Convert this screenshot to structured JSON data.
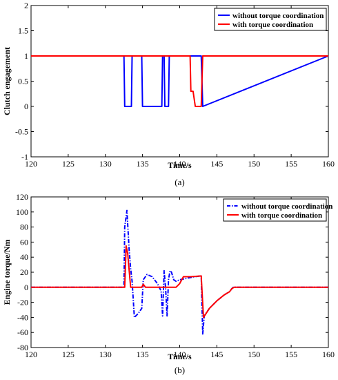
{
  "colors": {
    "series1": "#0000ff",
    "series2": "#ff0000",
    "axis": "#000000",
    "background": "#ffffff"
  },
  "chart_data": [
    {
      "type": "line",
      "panel_label": "(a)",
      "title": "",
      "xlabel": "Time/s",
      "ylabel": "Clutch engagement",
      "xlim": [
        120,
        160
      ],
      "ylim": [
        -1,
        2
      ],
      "xticks": [
        120,
        125,
        130,
        135,
        140,
        145,
        150,
        155,
        160
      ],
      "yticks": [
        -1,
        -0.5,
        0,
        0.5,
        1,
        1.5,
        2
      ],
      "ytick_labels": [
        "-1",
        "-0.5",
        "0",
        "0.5",
        "1",
        "1.5",
        "2"
      ],
      "grid": false,
      "legend_position": "top-right",
      "series": [
        {
          "name": "without torque coordination",
          "color": "#0000ff",
          "style": "solid",
          "x": [
            120,
            132.5,
            132.6,
            133.5,
            133.6,
            134.9,
            135.0,
            137.6,
            137.7,
            137.9,
            138.0,
            138.5,
            138.6,
            142.9,
            143.1,
            160
          ],
          "y": [
            1,
            1,
            0,
            0,
            1,
            1,
            0,
            0,
            1,
            1,
            0,
            0,
            1,
            1,
            0,
            1
          ]
        },
        {
          "name": "with torque coordination",
          "color": "#ff0000",
          "style": "solid",
          "x": [
            120,
            141.4,
            141.5,
            141.8,
            142.1,
            142.9,
            143.1,
            160
          ],
          "y": [
            1,
            1,
            0.3,
            0.3,
            0,
            0,
            1,
            1
          ]
        }
      ]
    },
    {
      "type": "line",
      "panel_label": "(b)",
      "title": "",
      "xlabel": "Time/s",
      "ylabel": "Engine torque/Nm",
      "xlim": [
        120,
        160
      ],
      "ylim": [
        -80,
        120
      ],
      "xticks": [
        120,
        125,
        130,
        135,
        140,
        145,
        150,
        155,
        160
      ],
      "yticks": [
        -80,
        -60,
        -40,
        -20,
        0,
        20,
        40,
        60,
        80,
        100,
        120
      ],
      "ytick_labels": [
        "-80",
        "-60",
        "-40",
        "-20",
        "0",
        "20",
        "40",
        "60",
        "80",
        "100",
        "120"
      ],
      "grid": false,
      "legend_position": "top-right",
      "series": [
        {
          "name": "without torque coordination",
          "color": "#0000ff",
          "style": "dash-dot",
          "x": [
            120,
            132.5,
            132.6,
            132.9,
            133.2,
            133.4,
            133.6,
            133.9,
            134.4,
            134.9,
            135.1,
            135.6,
            136.3,
            137.0,
            137.5,
            137.7,
            137.9,
            138.1,
            138.3,
            138.5,
            138.7,
            138.9,
            139.2,
            139.5,
            140.0,
            141.0,
            142.0,
            142.9,
            143.1,
            143.3,
            144.0,
            145.0,
            146.0,
            146.7,
            147.0,
            147.2,
            160
          ],
          "y": [
            0,
            0,
            80,
            102,
            50,
            25,
            8,
            -40,
            -35,
            -28,
            10,
            17,
            14,
            5,
            -5,
            -38,
            22,
            0,
            -38,
            10,
            22,
            20,
            10,
            8,
            10,
            12,
            14,
            15,
            -62,
            -38,
            -28,
            -18,
            -10,
            -6,
            -2,
            0,
            0
          ]
        },
        {
          "name": "with torque coordination",
          "color": "#ff0000",
          "style": "solid",
          "x": [
            120,
            132.6,
            132.8,
            133.0,
            133.4,
            133.8,
            134.4,
            134.9,
            135.1,
            135.4,
            136.0,
            138.0,
            139.0,
            139.5,
            140.0,
            140.5,
            141.5,
            142.9,
            143.2,
            144.0,
            145.0,
            146.0,
            146.7,
            147.0,
            147.3,
            160
          ],
          "y": [
            0,
            0,
            55,
            45,
            0,
            0,
            0,
            0,
            4,
            0,
            0,
            0,
            0,
            0,
            5,
            14,
            14,
            15,
            -40,
            -28,
            -18,
            -10,
            -6,
            -2,
            0,
            0
          ]
        }
      ]
    }
  ]
}
